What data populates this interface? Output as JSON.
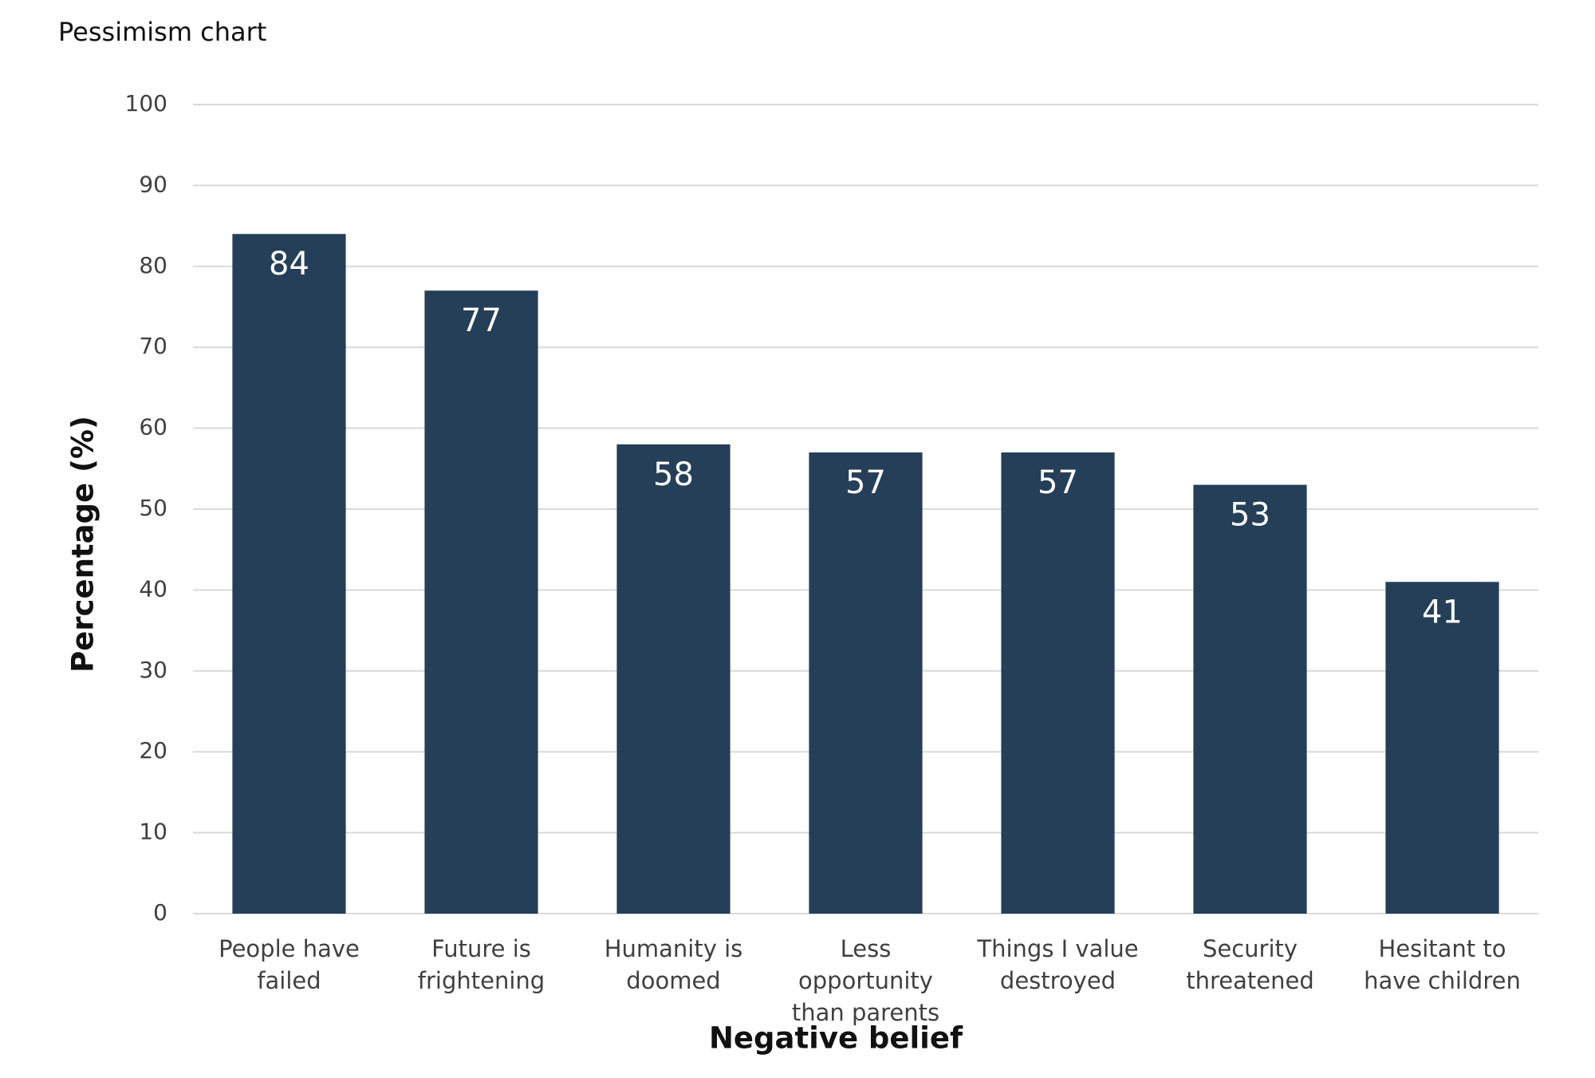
{
  "chart_data": {
    "type": "bar",
    "title": "Pessimism chart",
    "x_label": "Negative belief",
    "y_label": "Percentage (%)",
    "categories": [
      "People have failed",
      "Future is frightening",
      "Humanity is doomed",
      "Less opportunity than parents",
      "Things I value destroyed",
      "Security threatened",
      "Hesitant to have children"
    ],
    "values": [
      84,
      77,
      58,
      57,
      57,
      53,
      41
    ],
    "color": "#253f58",
    "ylim": [
      0,
      100
    ],
    "yticks": [
      0,
      10,
      20,
      30,
      40,
      50,
      60,
      70,
      80,
      90,
      100
    ],
    "grid": true
  }
}
